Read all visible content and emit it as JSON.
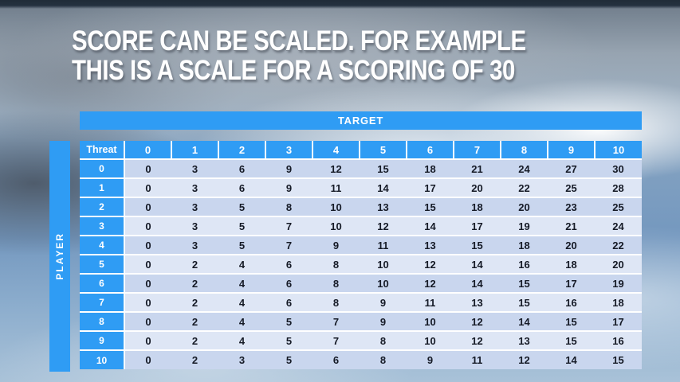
{
  "slide": {
    "title_line1": "SCORE CAN BE SCALED. FOR EXAMPLE",
    "title_line2": "THIS IS A SCALE FOR A SCORING OF 30"
  },
  "table": {
    "banner": "TARGET",
    "corner_label": "Threat",
    "side_label": "PLAYER",
    "col_headers": [
      "0",
      "1",
      "2",
      "3",
      "4",
      "5",
      "6",
      "7",
      "8",
      "9",
      "10"
    ],
    "rows": [
      {
        "header": "0",
        "values": [
          0,
          3,
          6,
          9,
          12,
          15,
          18,
          21,
          24,
          27,
          30
        ]
      },
      {
        "header": "1",
        "values": [
          0,
          3,
          6,
          9,
          11,
          14,
          17,
          20,
          22,
          25,
          28
        ]
      },
      {
        "header": "2",
        "values": [
          0,
          3,
          5,
          8,
          10,
          13,
          15,
          18,
          20,
          23,
          25
        ]
      },
      {
        "header": "3",
        "values": [
          0,
          3,
          5,
          7,
          10,
          12,
          14,
          17,
          19,
          21,
          24
        ]
      },
      {
        "header": "4",
        "values": [
          0,
          3,
          5,
          7,
          9,
          11,
          13,
          15,
          18,
          20,
          22
        ]
      },
      {
        "header": "5",
        "values": [
          0,
          2,
          4,
          6,
          8,
          10,
          12,
          14,
          16,
          18,
          20
        ]
      },
      {
        "header": "6",
        "values": [
          0,
          2,
          4,
          6,
          8,
          10,
          12,
          14,
          15,
          17,
          19
        ]
      },
      {
        "header": "7",
        "values": [
          0,
          2,
          4,
          6,
          8,
          9,
          11,
          13,
          15,
          16,
          18
        ]
      },
      {
        "header": "8",
        "values": [
          0,
          2,
          4,
          5,
          7,
          9,
          10,
          12,
          14,
          15,
          17
        ]
      },
      {
        "header": "9",
        "values": [
          0,
          2,
          4,
          5,
          7,
          8,
          10,
          12,
          13,
          15,
          16
        ]
      },
      {
        "header": "10",
        "values": [
          0,
          2,
          3,
          5,
          6,
          8,
          9,
          11,
          12,
          14,
          15
        ]
      }
    ]
  },
  "colors": {
    "accent": "#2f9cf4",
    "row_band_dark": "#c9d6ee",
    "row_band_light": "#dee6f5",
    "cell_text": "#151a26"
  }
}
